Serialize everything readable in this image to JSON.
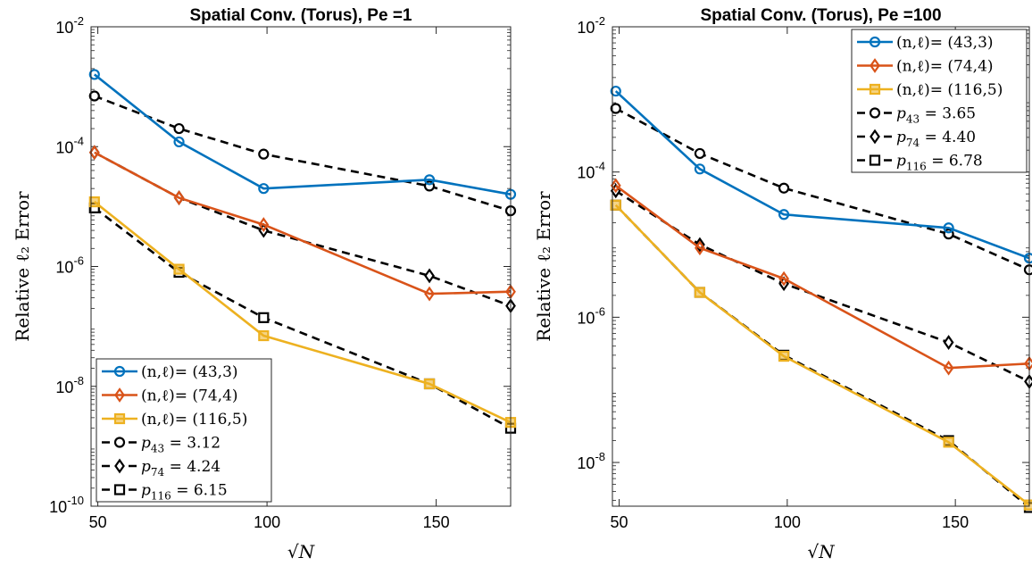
{
  "chart_data": [
    {
      "type": "line",
      "title": "Spatial Conv. (Torus), Pe =1",
      "xlabel": "√N",
      "ylabel": "Relative ℓ₂ Error",
      "xscale": "linear",
      "yscale": "log",
      "xlim": [
        48,
        172
      ],
      "ylim": [
        1e-10,
        0.01
      ],
      "xticks": [
        50,
        100,
        150
      ],
      "yticks": [
        {
          "value": 1e-10,
          "base": "10",
          "exp": "-10"
        },
        {
          "value": 1e-08,
          "base": "10",
          "exp": "-8"
        },
        {
          "value": 1e-06,
          "base": "10",
          "exp": "-6"
        },
        {
          "value": 0.0001,
          "base": "10",
          "exp": "-4"
        },
        {
          "value": 0.01,
          "base": "10",
          "exp": "-2"
        }
      ],
      "legend_position": "bottom-left",
      "x": [
        49,
        74,
        99,
        148,
        172
      ],
      "series": [
        {
          "name": "(n,ℓ)= (43,3)",
          "color": "#0072BD",
          "style": "solid",
          "marker": "circle",
          "values": [
            0.0016,
            0.00012,
            2e-05,
            2.8e-05,
            1.6e-05
          ]
        },
        {
          "name": "(n,ℓ)= (74,4)",
          "color": "#D95319",
          "style": "solid",
          "marker": "diamond",
          "values": [
            8e-05,
            1.4e-05,
            5e-06,
            3.5e-07,
            3.8e-07
          ]
        },
        {
          "name": "(n,ℓ)= (116,5)",
          "color": "#EDB120",
          "style": "solid",
          "marker": "square",
          "values": [
            1.2e-05,
            9e-07,
            7e-08,
            1.1e-08,
            2.5e-09
          ]
        },
        {
          "name": "p43 = 3.12",
          "sub": "43",
          "value": "3.12",
          "color": "#000000",
          "style": "dashed",
          "marker": "circle",
          "values": [
            0.0007,
            0.0002,
            7.5e-05,
            2.2e-05,
            8.5e-06
          ]
        },
        {
          "name": "p74 = 4.24",
          "sub": "74",
          "value": "4.24",
          "color": "#000000",
          "style": "dashed",
          "marker": "diamond",
          "values": [
            8e-05,
            1.4e-05,
            4e-06,
            7e-07,
            2.2e-07
          ]
        },
        {
          "name": "p116 = 6.15",
          "sub": "116",
          "value": "6.15",
          "color": "#000000",
          "style": "dashed",
          "marker": "square",
          "values": [
            9.5e-06,
            8e-07,
            1.4e-07,
            1.1e-08,
            2e-09
          ]
        }
      ]
    },
    {
      "type": "line",
      "title": "Spatial Conv. (Torus), Pe =100",
      "xlabel": "√N",
      "ylabel": "Relative ℓ₂ Error",
      "xscale": "linear",
      "yscale": "log",
      "xlim": [
        48,
        172
      ],
      "ylim": [
        2.5e-09,
        0.01
      ],
      "xticks": [
        50,
        100,
        150
      ],
      "yticks": [
        {
          "value": 1e-08,
          "base": "10",
          "exp": "-8"
        },
        {
          "value": 1e-06,
          "base": "10",
          "exp": "-6"
        },
        {
          "value": 0.0001,
          "base": "10",
          "exp": "-4"
        },
        {
          "value": 0.01,
          "base": "10",
          "exp": "-2"
        }
      ],
      "legend_position": "top-right",
      "x": [
        49,
        74,
        99,
        148,
        172
      ],
      "series": [
        {
          "name": "(n,ℓ)= (43,3)",
          "color": "#0072BD",
          "style": "solid",
          "marker": "circle",
          "values": [
            0.0013,
            0.00011,
            2.6e-05,
            1.7e-05,
            6.5e-06
          ]
        },
        {
          "name": "(n,ℓ)= (74,4)",
          "color": "#D95319",
          "style": "solid",
          "marker": "diamond",
          "values": [
            6.5e-05,
            9e-06,
            3.4e-06,
            2e-07,
            2.3e-07
          ]
        },
        {
          "name": "(n,ℓ)= (116,5)",
          "color": "#EDB120",
          "style": "solid",
          "marker": "square",
          "values": [
            3.5e-05,
            2.2e-06,
            2.9e-07,
            1.9e-08,
            2.6e-09
          ]
        },
        {
          "name": "p43 = 3.65",
          "sub": "43",
          "value": "3.65",
          "color": "#000000",
          "style": "dashed",
          "marker": "circle",
          "values": [
            0.00075,
            0.00018,
            6e-05,
            1.4e-05,
            4.5e-06
          ]
        },
        {
          "name": "p74 = 4.40",
          "sub": "74",
          "value": "4.40",
          "color": "#000000",
          "style": "dashed",
          "marker": "diamond",
          "values": [
            5.5e-05,
            1e-05,
            2.9e-06,
            4.5e-07,
            1.3e-07
          ]
        },
        {
          "name": "p116 = 6.78",
          "sub": "116",
          "value": "6.78",
          "color": "#000000",
          "style": "dashed",
          "marker": "square",
          "values": [
            3.5e-05,
            2.2e-06,
            3e-07,
            2e-08,
            2.4e-09
          ]
        }
      ]
    }
  ]
}
